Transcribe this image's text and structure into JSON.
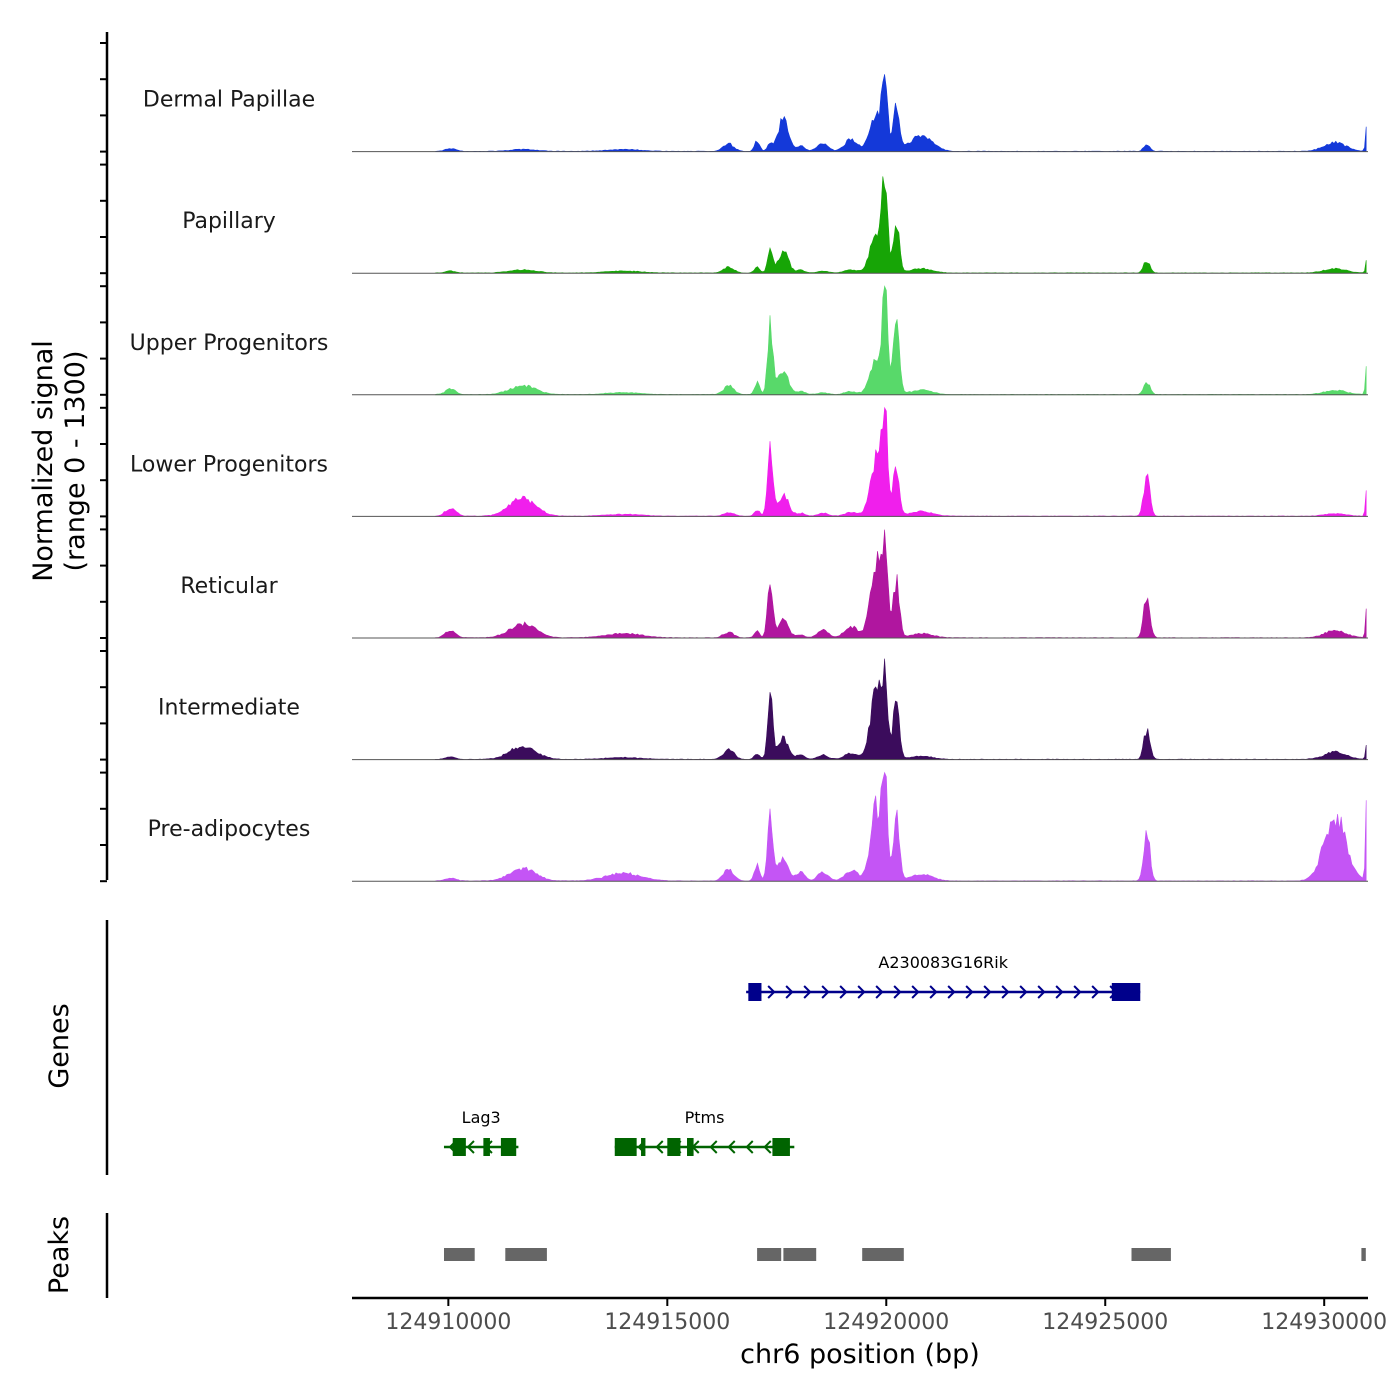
{
  "chart_data": {
    "type": "area",
    "title": "",
    "ylabel_line1": "Normalized signal",
    "ylabel_line2": "(range 0 - 1300)",
    "ylim": [
      0,
      1300
    ],
    "xlabel": "chr6 position (bp)",
    "xlim": [
      124907800,
      124931000
    ],
    "xticks": [
      124910000,
      124915000,
      124920000,
      124925000,
      124930000
    ],
    "xtick_labels": [
      "124910000",
      "124915000",
      "124920000",
      "124925000",
      "124930000"
    ],
    "peaks_shape": [
      {
        "pos": 124910050,
        "h": 0.05,
        "w": 120
      },
      {
        "pos": 124911700,
        "h": 0.06,
        "w": 300
      },
      {
        "pos": 124914000,
        "h": 0.02,
        "w": 400
      },
      {
        "pos": 124916400,
        "h": 0.08,
        "w": 120
      },
      {
        "pos": 124917050,
        "h": 0.1,
        "w": 60
      },
      {
        "pos": 124917350,
        "h": 0.42,
        "w": 60
      },
      {
        "pos": 124917650,
        "h": 0.08,
        "w": 120
      },
      {
        "pos": 124918050,
        "h": 0.72,
        "w": 95
      },
      {
        "pos": 124918550,
        "h": 0.06,
        "w": 120
      },
      {
        "pos": 124919200,
        "h": 0.06,
        "w": 150
      },
      {
        "pos": 124919780,
        "h": 0.55,
        "w": 140
      },
      {
        "pos": 124919970,
        "h": 1.0,
        "w": 60
      },
      {
        "pos": 124920230,
        "h": 0.6,
        "w": 70
      },
      {
        "pos": 124920800,
        "h": 0.05,
        "w": 250
      },
      {
        "pos": 124925950,
        "h": 0.06,
        "w": 70
      },
      {
        "pos": 124930250,
        "h": 0.05,
        "w": 250
      },
      {
        "pos": 124930950,
        "h": 0.3,
        "w": 15
      }
    ],
    "series": [
      {
        "name": "Dermal Papillae",
        "color": "#1439d9",
        "values": [
          25,
          15,
          15,
          60,
          80,
          60,
          250,
          45,
          65,
          95,
          305,
          550,
          335,
          130,
          55,
          70,
          260
        ]
      },
      {
        "name": "Papillary",
        "color": "#17a506",
        "values": [
          15,
          25,
          15,
          45,
          45,
          165,
          165,
          25,
          15,
          25,
          320,
          670,
          380,
          35,
          100,
          35,
          120
        ]
      },
      {
        "name": "Upper Progenitors",
        "color": "#58d96a",
        "values": [
          45,
          70,
          15,
          70,
          95,
          545,
          190,
          25,
          15,
          25,
          280,
          800,
          595,
          35,
          100,
          35,
          315
        ]
      },
      {
        "name": "Lower Progenitors",
        "color": "#f01fec",
        "values": [
          65,
          140,
          15,
          30,
          50,
          505,
          170,
          25,
          25,
          30,
          465,
          770,
          420,
          40,
          325,
          20,
          280
        ]
      },
      {
        "name": "Reticular",
        "color": "#b0169f",
        "values": [
          55,
          110,
          35,
          45,
          50,
          445,
          135,
          20,
          60,
          90,
          580,
          620,
          455,
          35,
          345,
          55,
          280
        ]
      },
      {
        "name": "Intermediate",
        "color": "#3b0c5c",
        "values": [
          20,
          105,
          15,
          80,
          50,
          480,
          165,
          35,
          35,
          50,
          550,
          500,
          470,
          25,
          230,
          60,
          155
        ]
      },
      {
        "name": "Pre-adipocytes",
        "color": "#c455f5",
        "values": [
          25,
          95,
          60,
          90,
          130,
          520,
          190,
          70,
          70,
          85,
          585,
          690,
          525,
          55,
          410,
          510,
          700
        ]
      }
    ],
    "genes": [
      {
        "name": "A230083G16Rik",
        "color": "#00008b",
        "strand": "+",
        "start": 124916800,
        "end": 124925800,
        "exons": [
          [
            124916850,
            124917150
          ],
          [
            124925150,
            124925800
          ]
        ]
      },
      {
        "name": "Lag3",
        "color": "#006400",
        "strand": "-",
        "start": 124909900,
        "end": 124911600,
        "exons": [
          [
            124910100,
            124910400
          ],
          [
            124910800,
            124910950
          ],
          [
            124911200,
            124911550
          ]
        ]
      },
      {
        "name": "Ptms",
        "color": "#006400",
        "strand": "-",
        "start": 124913800,
        "end": 124917900,
        "exons": [
          [
            124913800,
            124914300
          ],
          [
            124914400,
            124914500
          ],
          [
            124915000,
            124915300
          ],
          [
            124915450,
            124915600
          ],
          [
            124917400,
            124917800
          ]
        ]
      }
    ],
    "peak_regions": [
      [
        124909900,
        124910600
      ],
      [
        124911300,
        124912250
      ],
      [
        124917050,
        124917600
      ],
      [
        124917650,
        124918400
      ],
      [
        124919450,
        124920400
      ],
      [
        124925600,
        124926500
      ],
      [
        124930850,
        124930950
      ]
    ],
    "side_labels": {
      "genes": "Genes",
      "peaks": "Peaks"
    },
    "peak_color": "#666666"
  }
}
